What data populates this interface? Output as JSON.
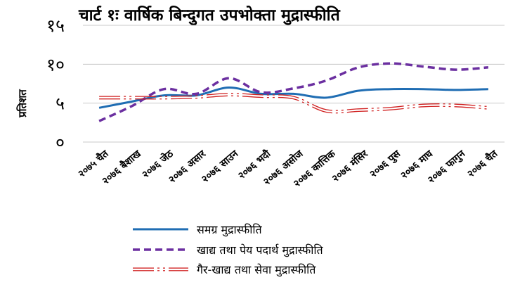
{
  "chart_data": {
    "type": "line",
    "title": "चार्ट १ः वार्षिक बिन्दुगत उपभोक्ता मुद्रास्फीति",
    "ylabel": "प्रतिशत",
    "xlabel": "",
    "ylim": [
      0,
      15
    ],
    "yticks": [
      {
        "value": 0,
        "label": "०"
      },
      {
        "value": 5,
        "label": "५"
      },
      {
        "value": 10,
        "label": "१०"
      },
      {
        "value": 15,
        "label": "१५"
      }
    ],
    "categories": [
      "२०७५ चैत",
      "२०७६ बैशाख",
      "२०७६ जेठ",
      "२०७६ असार",
      "२०७६ साउन",
      "२०७६ भदौ",
      "२०७६ असोज",
      "२०७६ कात्तिक",
      "२०७६ मंसिर",
      "२०७६ पुस",
      "२०७६ माघ",
      "२०७६ फागुन",
      "२०७६ चैत"
    ],
    "grid": "horizontal",
    "legend_position": "bottom",
    "series": [
      {
        "name": "समग्र मुद्रास्फीति",
        "color": "#1f6db3",
        "style": "solid",
        "values": [
          4.4,
          5.2,
          6.0,
          6.0,
          7.0,
          6.2,
          6.2,
          5.7,
          6.6,
          6.8,
          6.8,
          6.7,
          6.8
        ]
      },
      {
        "name": "खाद्य तथा पेय पदार्थ मुद्रास्फीति",
        "color": "#6b2fa0",
        "style": "dashed",
        "values": [
          2.7,
          4.6,
          6.8,
          6.2,
          8.2,
          6.4,
          6.9,
          7.9,
          9.6,
          10.1,
          9.7,
          9.3,
          9.6
        ]
      },
      {
        "name": "गैर-खाद्य तथा सेवा मुद्रास्फीति",
        "color": "#d02020",
        "style": "double-dashdot",
        "values": [
          5.7,
          5.7,
          5.7,
          5.8,
          6.1,
          5.9,
          5.7,
          4.0,
          4.1,
          4.3,
          4.7,
          4.7,
          4.4
        ]
      }
    ]
  }
}
